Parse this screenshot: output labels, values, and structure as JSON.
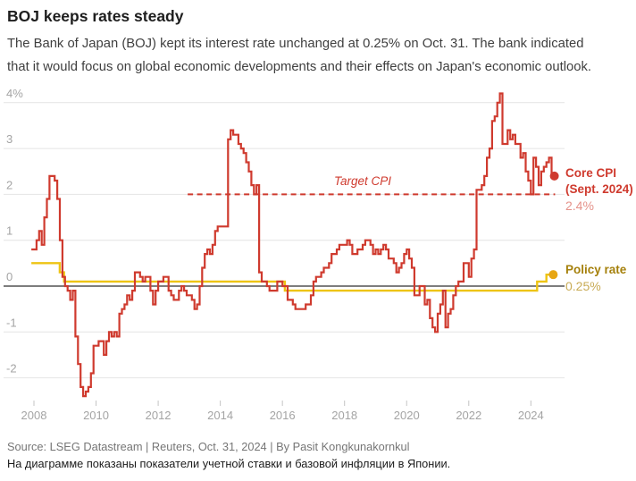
{
  "header": {
    "title": "BOJ keeps rates steady",
    "subtitle_line1": "The Bank of Japan (BOJ) kept its interest rate unchanged at 0.25% on Oct. 31. The bank indicated",
    "subtitle_line2": "that it would focus on global economic developments and their effects on Japan's economic outlook."
  },
  "annotations": {
    "target_cpi": "Target CPI",
    "core_cpi": {
      "line1": "Core CPI",
      "line2": "(Sept. 2024)",
      "value": "2.4%"
    },
    "policy_rate": {
      "label": "Policy rate",
      "value": "0.25%"
    }
  },
  "footer": {
    "source": "Source: LSEG Datastream | Reuters, Oct. 31, 2024 | By Pasit Kongkunakornkul",
    "note": "На диаграмме показаны показатели учетной ставки и базовой инфляции в Японии."
  },
  "chart_data": {
    "type": "line",
    "title": "BOJ keeps rates steady",
    "legend_position": "right-end-labels",
    "grid": true,
    "x_axis": {
      "ticks": [
        2008,
        2010,
        2012,
        2014,
        2016,
        2018,
        2020,
        2022,
        2024
      ],
      "range": [
        2007.8,
        2025.3
      ]
    },
    "y_axis": {
      "unit": "%",
      "ticks": [
        -2,
        -1,
        0,
        1,
        2,
        3,
        4
      ],
      "top_tick_label": "4%",
      "range": [
        -2.7,
        4.4
      ]
    },
    "target_line": {
      "label": "Target CPI",
      "value": 2,
      "from": 2012.95,
      "to": 2024.78,
      "color": "#cf3a2e"
    },
    "colors": {
      "grid": "#e4e4e4",
      "zero_line": "#7d7d7d",
      "axis_text": "#a4a4a4",
      "tick": "#c4c4c4"
    },
    "series": [
      {
        "id": "cpi",
        "name": "Core CPI",
        "color": "#cf3a2e",
        "dot_color": "#cf3a2e",
        "style": "step-monthly",
        "start": 2007.917,
        "interval_years": 0.08333,
        "end_label_value": "2.4%",
        "end_label_date": "Sept. 2024",
        "values": [
          0.8,
          0.8,
          1.0,
          1.2,
          0.9,
          1.5,
          1.9,
          2.4,
          2.4,
          2.3,
          1.9,
          1.0,
          0.2,
          0.0,
          -0.1,
          -0.3,
          -0.1,
          -1.1,
          -1.7,
          -2.2,
          -2.4,
          -2.3,
          -2.2,
          -1.9,
          -1.3,
          -1.3,
          -1.2,
          -1.2,
          -1.5,
          -1.2,
          -1.0,
          -1.1,
          -1.0,
          -1.1,
          -0.6,
          -0.5,
          -0.4,
          -0.2,
          -0.3,
          -0.1,
          0.3,
          0.3,
          0.2,
          0.1,
          0.2,
          0.2,
          -0.1,
          -0.4,
          -0.1,
          0.1,
          0.1,
          0.2,
          0.2,
          -0.1,
          -0.2,
          -0.3,
          -0.3,
          -0.1,
          0.0,
          -0.1,
          -0.2,
          -0.2,
          -0.3,
          -0.5,
          -0.4,
          0.0,
          0.4,
          0.7,
          0.8,
          0.7,
          0.9,
          1.2,
          1.3,
          1.3,
          1.3,
          1.3,
          3.2,
          3.4,
          3.3,
          3.3,
          3.1,
          3.0,
          2.9,
          2.7,
          2.5,
          2.2,
          2.0,
          2.2,
          0.3,
          0.1,
          0.1,
          0.0,
          -0.1,
          -0.1,
          -0.1,
          0.1,
          0.1,
          0.0,
          0.0,
          -0.3,
          -0.3,
          -0.4,
          -0.5,
          -0.5,
          -0.5,
          -0.5,
          -0.4,
          -0.4,
          -0.2,
          0.1,
          0.2,
          0.2,
          0.3,
          0.4,
          0.4,
          0.5,
          0.7,
          0.7,
          0.8,
          0.9,
          0.9,
          0.9,
          1.0,
          0.9,
          0.7,
          0.7,
          0.8,
          0.8,
          0.9,
          1.0,
          1.0,
          0.9,
          0.7,
          0.8,
          0.7,
          0.8,
          0.9,
          0.8,
          0.6,
          0.6,
          0.5,
          0.3,
          0.4,
          0.5,
          0.7,
          0.8,
          0.6,
          0.4,
          -0.2,
          -0.2,
          0.0,
          0.0,
          -0.4,
          -0.3,
          -0.7,
          -0.9,
          -1.0,
          -0.6,
          -0.4,
          -0.1,
          -0.9,
          -0.6,
          -0.5,
          -0.2,
          0.0,
          0.1,
          0.1,
          0.5,
          0.5,
          0.2,
          0.6,
          0.8,
          2.1,
          2.1,
          2.2,
          2.4,
          2.8,
          3.0,
          3.6,
          3.7,
          4.0,
          4.2,
          3.1,
          3.1,
          3.4,
          3.2,
          3.3,
          3.1,
          3.1,
          2.8,
          2.9,
          2.5,
          2.3,
          2.0,
          2.8,
          2.6,
          2.2,
          2.5,
          2.6,
          2.7,
          2.8,
          2.4
        ]
      },
      {
        "id": "policy",
        "name": "Policy rate",
        "color": "#eec413",
        "dot_color": "#e7a614",
        "style": "step",
        "end": 2024.72,
        "end_label_value": "0.25%",
        "points": [
          [
            2007.917,
            0.5
          ],
          [
            2008.83,
            0.3
          ],
          [
            2008.97,
            0.1
          ],
          [
            2016.08,
            -0.1
          ],
          [
            2024.2,
            0.1
          ],
          [
            2024.5,
            0.25
          ]
        ]
      }
    ]
  }
}
